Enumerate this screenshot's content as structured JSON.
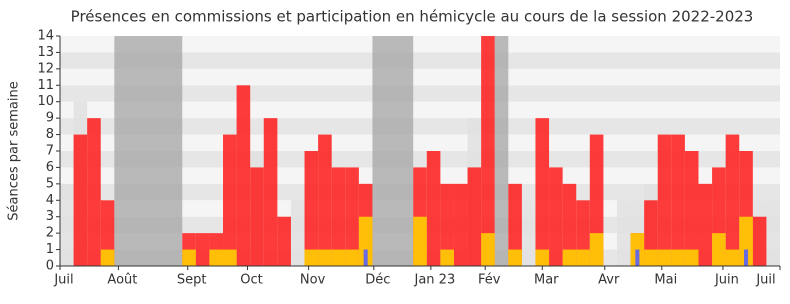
{
  "chart_data": {
    "type": "bar",
    "title": "Présences en commissions et participation en hémicycle au cours de la session 2022-2023",
    "y_label": "Séances par semaine",
    "x": [
      0,
      1,
      2,
      3,
      4,
      5,
      6,
      7,
      8,
      9,
      10,
      11,
      12,
      13,
      14,
      15,
      16,
      17,
      18,
      19,
      20,
      21,
      22,
      23,
      24,
      25,
      26,
      27,
      28,
      29,
      30,
      31,
      32,
      33,
      34,
      35,
      36,
      37,
      38,
      39,
      40,
      41,
      42,
      43,
      44,
      45,
      46,
      47,
      48,
      49,
      50,
      51,
      52
    ],
    "series": [
      {
        "color": "#e0e0e0",
        "values": [
          5,
          10,
          null,
          null,
          null,
          null,
          null,
          null,
          null,
          null,
          null,
          null,
          null,
          null,
          7,
          null,
          null,
          4,
          null,
          null,
          null,
          null,
          null,
          null,
          null,
          null,
          null,
          null,
          null,
          null,
          9,
          null,
          null,
          null,
          4,
          null,
          null,
          null,
          null,
          null,
          null,
          4,
          4,
          5,
          null,
          null,
          null,
          null,
          null,
          null,
          null,
          4,
          4
        ]
      },
      {
        "color": "#ff1a1a",
        "values": [
          0,
          8,
          9,
          4,
          0,
          0,
          0,
          0,
          0,
          2,
          2,
          2,
          8,
          11,
          6,
          9,
          3,
          0,
          7,
          8,
          6,
          6,
          5,
          0,
          0,
          0,
          6,
          7,
          5,
          5,
          6,
          14,
          0,
          5,
          0,
          9,
          6,
          5,
          4,
          8,
          0,
          0,
          2,
          4,
          8,
          8,
          7,
          5,
          6,
          8,
          7,
          3,
          0
        ]
      },
      {
        "color": "#ffd700",
        "values": [
          0,
          0,
          0,
          1,
          0,
          0,
          0,
          0,
          0,
          1,
          0,
          1,
          1,
          0,
          0,
          0,
          0,
          0,
          1,
          1,
          1,
          1,
          3,
          0,
          0,
          0,
          3,
          0,
          1,
          0,
          0,
          2,
          0,
          1,
          0,
          1,
          0,
          1,
          1,
          2,
          0,
          0,
          2,
          1,
          1,
          1,
          1,
          0,
          2,
          1,
          3,
          0,
          0
        ]
      },
      {
        "color": "#6a6adf",
        "values": [
          null,
          null,
          null,
          null,
          null,
          null,
          null,
          null,
          null,
          null,
          null,
          null,
          null,
          null,
          null,
          null,
          null,
          null,
          null,
          null,
          null,
          null,
          1,
          null,
          null,
          null,
          null,
          null,
          null,
          null,
          null,
          null,
          null,
          null,
          null,
          null,
          null,
          null,
          null,
          null,
          null,
          null,
          1,
          null,
          null,
          null,
          null,
          null,
          null,
          null,
          1,
          null,
          null
        ]
      }
    ],
    "shaded_ranges": [
      [
        3.5,
        8.5
      ],
      [
        22.5,
        25.5
      ],
      [
        31.5,
        32.5
      ]
    ],
    "shade_color": "#a0a0a0",
    "xlim": [
      -0.5,
      52.5
    ],
    "xticks": [
      {
        "value": -0.5,
        "label": "Juil"
      },
      {
        "value": 3.8,
        "label": "Août"
      },
      {
        "value": 8.9,
        "label": "Sept"
      },
      {
        "value": 13.3,
        "label": "Oct"
      },
      {
        "value": 17.8,
        "label": "Nov"
      },
      {
        "value": 22.6,
        "label": "Déc"
      },
      {
        "value": 26.8,
        "label": "Jan 23"
      },
      {
        "value": 30.8,
        "label": "Fév"
      },
      {
        "value": 35.0,
        "label": "Mar"
      },
      {
        "value": 39.6,
        "label": "Avr"
      },
      {
        "value": 43.8,
        "label": "Mai"
      },
      {
        "value": 48.3,
        "label": "Juin"
      },
      {
        "value": 52.5,
        "label": "Juil"
      }
    ],
    "ylim": [
      0,
      14
    ],
    "yticks": [
      0,
      1,
      2,
      3,
      4,
      5,
      6,
      7,
      8,
      9,
      10,
      11,
      12,
      13,
      14
    ],
    "grid": true
  }
}
